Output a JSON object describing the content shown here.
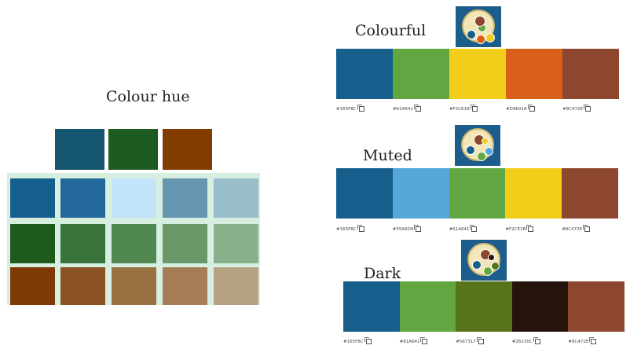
{
  "colour_hue": {
    "title": "Colour hue",
    "top_row": [
      "#155670",
      "#1e5b1e",
      "#833c00"
    ],
    "grid": [
      [
        "#155f8f",
        "#22689a",
        "#c3e4fb",
        "#6598b0",
        "#97bec9"
      ],
      [
        "#1f5a1d",
        "#3a733a",
        "#518750",
        "#6a9868",
        "#89b08a"
      ],
      [
        "#7e3a04",
        "#8a5321",
        "#9a7143",
        "#a67d55",
        "#b6a283"
      ]
    ]
  },
  "palettes": [
    {
      "title": "Colourful",
      "colors": [
        "#165F8C",
        "#61A641",
        "#F2CE1B",
        "#D9601A",
        "#8C472E"
      ],
      "codes": [
        "#165F8C",
        "#61A641",
        "#F2CE1B",
        "#D9601A",
        "#8C472E"
      ],
      "thumb_icon": "palette-plate-icon"
    },
    {
      "title": "Muted",
      "colors": [
        "#165F8C",
        "#55A6D9",
        "#61A641",
        "#F2CE1B",
        "#8C472E"
      ],
      "codes": [
        "#165F8C",
        "#55A6D9",
        "#61A641",
        "#F2CE1B",
        "#8C472E"
      ],
      "thumb_icon": "palette-plate-icon"
    },
    {
      "title": "Dark",
      "colors": [
        "#165F8C",
        "#61A641",
        "#567317",
        "#26130C",
        "#8C472E"
      ],
      "codes": [
        "#165F8C",
        "#61A641",
        "#567317",
        "#26130C",
        "#8C472E"
      ],
      "thumb_icon": "palette-plate-icon"
    }
  ],
  "icons": {
    "copy": "copy-icon"
  }
}
